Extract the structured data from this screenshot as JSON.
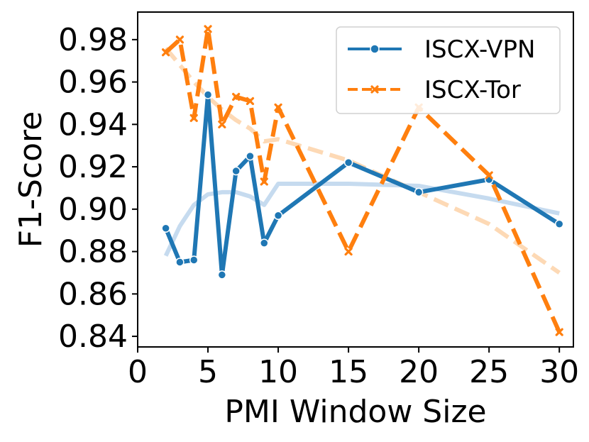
{
  "chart_data": {
    "type": "line",
    "title": "",
    "xlabel": "PMI Window Size",
    "ylabel": "F1-Score",
    "xlim": [
      0,
      31
    ],
    "ylim": [
      0.835,
      0.993
    ],
    "xticks": [
      0,
      5,
      10,
      15,
      20,
      25,
      30
    ],
    "yticks": [
      0.84,
      0.86,
      0.88,
      0.9,
      0.92,
      0.94,
      0.96,
      0.98
    ],
    "xtick_labels": [
      "0",
      "5",
      "10",
      "15",
      "20",
      "25",
      "30"
    ],
    "ytick_labels": [
      "0.84",
      "0.86",
      "0.88",
      "0.90",
      "0.92",
      "0.94",
      "0.96",
      "0.98"
    ],
    "x": [
      2,
      3,
      4,
      5,
      6,
      7,
      8,
      9,
      10,
      15,
      20,
      25,
      30
    ],
    "series": [
      {
        "name": "ISCX-VPN",
        "color": "#1f77b4",
        "style": "solid",
        "marker": "circle",
        "values": [
          0.891,
          0.875,
          0.876,
          0.954,
          0.869,
          0.918,
          0.925,
          0.884,
          0.897,
          0.922,
          0.908,
          0.914,
          0.893
        ],
        "trend": [
          0.878,
          0.892,
          0.902,
          0.907,
          0.908,
          0.908,
          0.906,
          0.902,
          0.912,
          0.912,
          0.911,
          0.905,
          0.898
        ]
      },
      {
        "name": "ISCX-Tor",
        "color": "#ff7f0e",
        "style": "dashed",
        "marker": "x",
        "values": [
          0.974,
          0.98,
          0.943,
          0.985,
          0.94,
          0.953,
          0.951,
          0.913,
          0.948,
          0.88,
          0.948,
          0.916,
          0.842
        ],
        "trend": [
          0.976,
          0.968,
          0.96,
          0.953,
          0.947,
          0.942,
          0.938,
          0.932,
          0.933,
          0.923,
          0.908,
          0.893,
          0.87
        ]
      }
    ],
    "legend_position": "top-right",
    "grid": false
  }
}
